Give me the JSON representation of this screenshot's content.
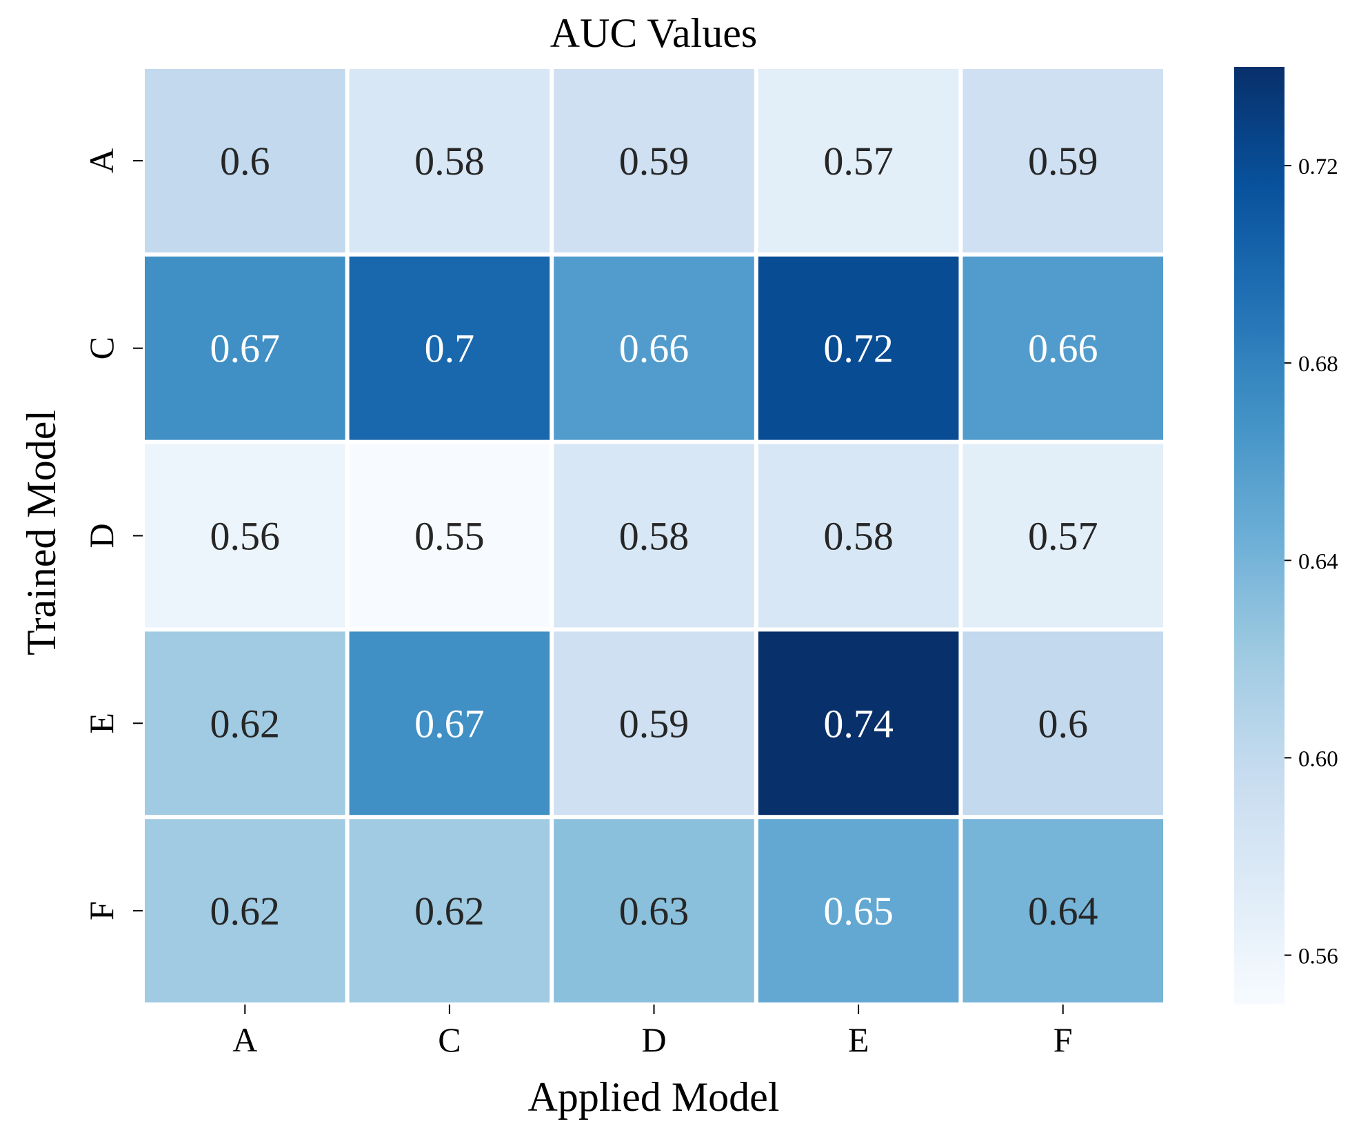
{
  "chart_data": {
    "type": "heatmap",
    "title": "AUC Values",
    "xlabel": "Applied Model",
    "ylabel": "Trained Model",
    "x_categories": [
      "A",
      "C",
      "D",
      "E",
      "F"
    ],
    "y_categories": [
      "A",
      "C",
      "D",
      "E",
      "F"
    ],
    "values": [
      [
        0.6,
        0.58,
        0.59,
        0.57,
        0.59
      ],
      [
        0.67,
        0.7,
        0.66,
        0.72,
        0.66
      ],
      [
        0.56,
        0.55,
        0.58,
        0.58,
        0.57
      ],
      [
        0.62,
        0.67,
        0.59,
        0.74,
        0.6
      ],
      [
        0.62,
        0.62,
        0.63,
        0.65,
        0.64
      ]
    ],
    "annotations": [
      [
        "0.6",
        "0.58",
        "0.59",
        "0.57",
        "0.59"
      ],
      [
        "0.67",
        "0.7",
        "0.66",
        "0.72",
        "0.66"
      ],
      [
        "0.56",
        "0.55",
        "0.58",
        "0.58",
        "0.57"
      ],
      [
        "0.62",
        "0.67",
        "0.59",
        "0.74",
        "0.6"
      ],
      [
        "0.62",
        "0.62",
        "0.63",
        "0.65",
        "0.64"
      ]
    ],
    "colormap": "Blues",
    "colorbar": {
      "vmin": 0.55,
      "vmax": 0.74,
      "ticks": [
        0.56,
        0.6,
        0.64,
        0.68,
        0.72
      ],
      "tick_labels": [
        "0.56",
        "0.60",
        "0.64",
        "0.68",
        "0.72"
      ]
    },
    "text_colors": {
      "light": "#ffffff",
      "dark": "#262626"
    }
  }
}
